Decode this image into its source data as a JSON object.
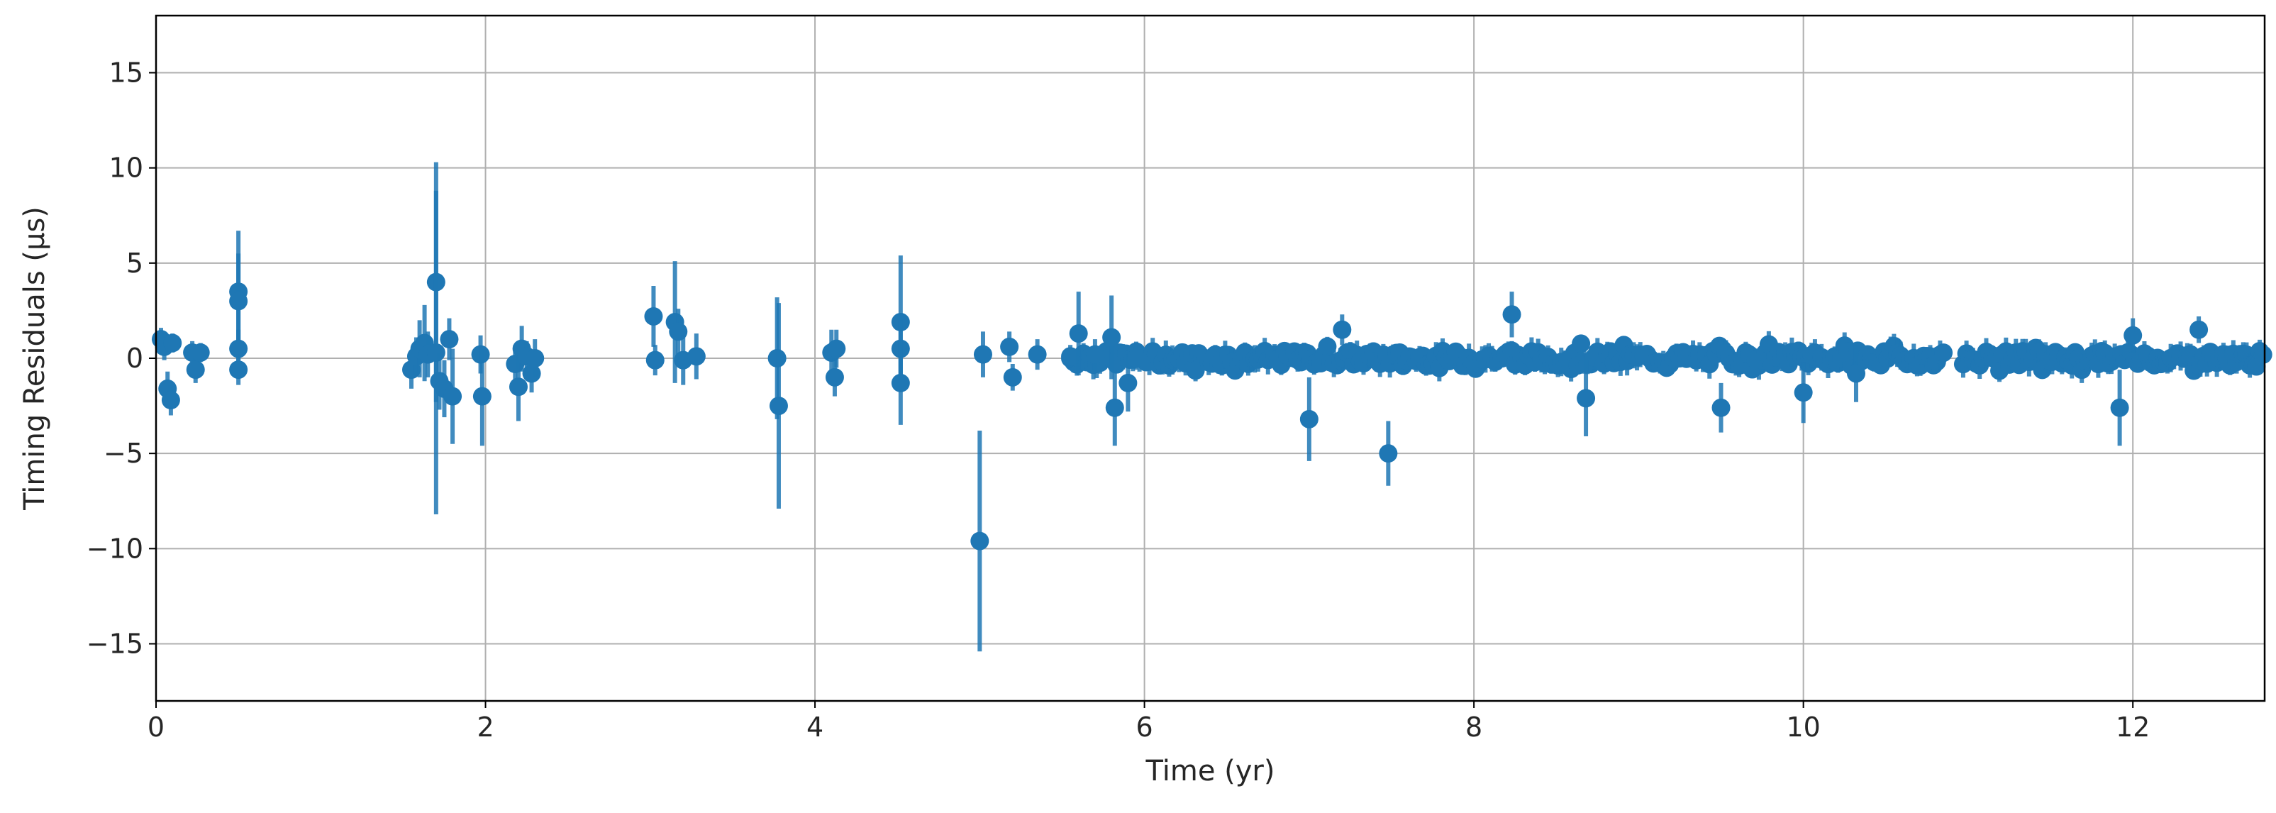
{
  "chart_data": {
    "type": "scatter",
    "title": "",
    "xlabel": "Time (yr)",
    "ylabel": "Timing Residuals (μs)",
    "xlim": [
      0,
      12.8
    ],
    "ylim": [
      -18,
      18
    ],
    "xticks": [
      0,
      2,
      4,
      6,
      8,
      10,
      12
    ],
    "yticks": [
      -15,
      -10,
      -5,
      0,
      5,
      10,
      15
    ],
    "grid": true,
    "colors": {
      "series": "#1f77b4",
      "grid": "#b0b0b0",
      "axes": "#000000"
    },
    "points": [
      {
        "x": 0.03,
        "y": 1.0,
        "err": 0.6
      },
      {
        "x": 0.05,
        "y": 0.6,
        "err": 0.7
      },
      {
        "x": 0.07,
        "y": -1.6,
        "err": 0.9
      },
      {
        "x": 0.09,
        "y": -2.2,
        "err": 0.8
      },
      {
        "x": 0.1,
        "y": 0.8,
        "err": 0.5
      },
      {
        "x": 0.22,
        "y": 0.3,
        "err": 0.6
      },
      {
        "x": 0.24,
        "y": -0.6,
        "err": 0.7
      },
      {
        "x": 0.27,
        "y": 0.3,
        "err": 0.5
      },
      {
        "x": 0.5,
        "y": 3.5,
        "err": 3.2
      },
      {
        "x": 0.5,
        "y": 3.0,
        "err": 2.5
      },
      {
        "x": 0.5,
        "y": 0.5,
        "err": 1.0
      },
      {
        "x": 0.5,
        "y": -0.6,
        "err": 0.8
      },
      {
        "x": 1.55,
        "y": -0.6,
        "err": 1.0
      },
      {
        "x": 1.58,
        "y": 0.1,
        "err": 1.0
      },
      {
        "x": 1.6,
        "y": 0.5,
        "err": 1.5
      },
      {
        "x": 1.63,
        "y": 0.8,
        "err": 2.0
      },
      {
        "x": 1.65,
        "y": 0.2,
        "err": 1.2
      },
      {
        "x": 1.7,
        "y": 4.0,
        "err": 6.3
      },
      {
        "x": 1.7,
        "y": 0.3,
        "err": 8.5
      },
      {
        "x": 1.72,
        "y": -1.2,
        "err": 1.5
      },
      {
        "x": 1.75,
        "y": -1.6,
        "err": 1.5
      },
      {
        "x": 1.78,
        "y": 1.0,
        "err": 1.1
      },
      {
        "x": 1.8,
        "y": -2.0,
        "err": 2.5
      },
      {
        "x": 1.97,
        "y": 0.2,
        "err": 1.0
      },
      {
        "x": 1.98,
        "y": -2.0,
        "err": 2.6
      },
      {
        "x": 2.18,
        "y": -0.3,
        "err": 1.0
      },
      {
        "x": 2.2,
        "y": -1.5,
        "err": 1.8
      },
      {
        "x": 2.22,
        "y": 0.5,
        "err": 1.2
      },
      {
        "x": 2.25,
        "y": 0.1,
        "err": 0.8
      },
      {
        "x": 2.28,
        "y": -0.8,
        "err": 1.0
      },
      {
        "x": 2.3,
        "y": 0.0,
        "err": 1.0
      },
      {
        "x": 3.02,
        "y": 2.2,
        "err": 1.6
      },
      {
        "x": 3.03,
        "y": -0.1,
        "err": 0.8
      },
      {
        "x": 3.15,
        "y": 1.9,
        "err": 3.2
      },
      {
        "x": 3.17,
        "y": 1.4,
        "err": 1.2
      },
      {
        "x": 3.2,
        "y": -0.1,
        "err": 1.3
      },
      {
        "x": 3.28,
        "y": 0.1,
        "err": 1.2
      },
      {
        "x": 3.77,
        "y": 0.0,
        "err": 3.2
      },
      {
        "x": 3.78,
        "y": -2.5,
        "err": 5.4
      },
      {
        "x": 4.1,
        "y": 0.3,
        "err": 1.2
      },
      {
        "x": 4.12,
        "y": -1.0,
        "err": 1.0
      },
      {
        "x": 4.13,
        "y": 0.5,
        "err": 1.0
      },
      {
        "x": 4.52,
        "y": 1.9,
        "err": 3.5
      },
      {
        "x": 4.52,
        "y": 0.5,
        "err": 1.5
      },
      {
        "x": 4.52,
        "y": -1.3,
        "err": 2.2
      },
      {
        "x": 5.0,
        "y": -9.6,
        "err": 5.8
      },
      {
        "x": 5.02,
        "y": 0.2,
        "err": 1.2
      },
      {
        "x": 5.18,
        "y": 0.6,
        "err": 0.8
      },
      {
        "x": 5.2,
        "y": -1.0,
        "err": 0.7
      },
      {
        "x": 5.35,
        "y": 0.2,
        "err": 0.8
      },
      {
        "x": 5.55,
        "y": 0.1,
        "err": 0.6
      },
      {
        "x": 5.6,
        "y": 1.3,
        "err": 2.2
      },
      {
        "x": 5.7,
        "y": 0.2,
        "err": 0.8
      },
      {
        "x": 5.8,
        "y": 1.1,
        "err": 2.2
      },
      {
        "x": 5.82,
        "y": -2.6,
        "err": 2.0
      },
      {
        "x": 5.9,
        "y": -1.3,
        "err": 1.5
      },
      {
        "x": 5.95,
        "y": 0.0,
        "err": 0.6
      },
      {
        "x": 7.0,
        "y": -3.2,
        "err": 2.2
      },
      {
        "x": 7.2,
        "y": 1.5,
        "err": 0.8
      },
      {
        "x": 7.48,
        "y": -5.0,
        "err": 1.7
      },
      {
        "x": 8.23,
        "y": 2.3,
        "err": 1.2
      },
      {
        "x": 8.68,
        "y": -2.1,
        "err": 2.0
      },
      {
        "x": 9.5,
        "y": -2.6,
        "err": 1.3
      },
      {
        "x": 10.0,
        "y": -1.8,
        "err": 1.6
      },
      {
        "x": 10.32,
        "y": -0.8,
        "err": 1.5
      },
      {
        "x": 11.92,
        "y": -2.6,
        "err": 2.0
      },
      {
        "x": 12.0,
        "y": 1.2,
        "err": 0.9
      },
      {
        "x": 12.4,
        "y": 1.5,
        "err": 0.7
      }
    ],
    "dense_bands": [
      {
        "x_start": 5.55,
        "x_end": 12.8,
        "step": 0.02,
        "x_gaps": [
          [
            10.85,
            10.95
          ]
        ],
        "y_spread": 0.55,
        "err": 0.55
      }
    ]
  }
}
